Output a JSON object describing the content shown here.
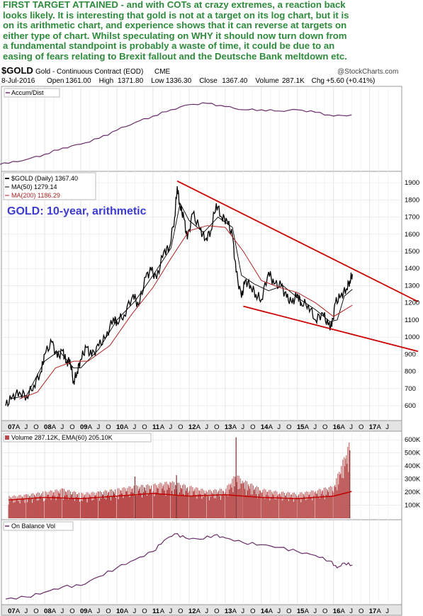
{
  "commentary": {
    "lines": [
      "FIRST TARGET ATTAINED - and with COTs at crazy extremes, a reaction back",
      "looks likely. It is interesting that gold is not at a target on its log chart, but it is",
      "on its arithmetic chart, and experience shows that it can reverse at targets on",
      "either type of chart. Whilst speculating on WHY it should now turn down from",
      "a fundamental standpoint is probably a waste of time, it could be due to an",
      "easing of fears relating to Brexit fallout  and the Deutsche Bank meltdown etc."
    ],
    "color": "#2e8b3c"
  },
  "header": {
    "symbol": "$GOLD",
    "contract": "Gold - Continuous Contract (EOD)",
    "exchange": "CME",
    "source": "@StockCharts.com",
    "date": "8-Jul-2016",
    "quote": [
      {
        "label": "Open",
        "value": "1361.00"
      },
      {
        "label": "High",
        "value": "1371.80"
      },
      {
        "label": "Low",
        "value": "1336.30"
      },
      {
        "label": "Close",
        "value": "1367.40"
      },
      {
        "label": "Volume",
        "value": "287.1K"
      },
      {
        "label": "Chg",
        "value": "+5.60 (+0.41%)"
      }
    ]
  },
  "chart_data": [
    {
      "type": "line",
      "panel": "accum-dist",
      "legend": [
        "Accum/Dist"
      ],
      "series": [
        {
          "name": "Accum/Dist",
          "x": [
            2006.5,
            2007.0,
            2007.5,
            2008.0,
            2008.5,
            2009.0,
            2009.5,
            2010.0,
            2010.5,
            2011.0,
            2011.5,
            2012.0,
            2012.5,
            2013.0,
            2013.5,
            2014.0,
            2014.5,
            2015.0,
            2015.5,
            2016.0,
            2016.5
          ],
          "values": [
            0.05,
            0.06,
            0.12,
            0.2,
            0.3,
            0.36,
            0.45,
            0.58,
            0.7,
            0.8,
            0.9,
            0.98,
            1.0,
            0.95,
            0.9,
            0.9,
            0.88,
            0.9,
            0.86,
            0.8,
            0.82
          ]
        }
      ],
      "color": "#6a2c6a"
    },
    {
      "type": "line",
      "panel": "price",
      "title": "GOLD: 10-year, arithmetic",
      "legend": [
        "$GOLD (Daily) 1367.40",
        "MA(50) 1279.14",
        "MA(200) 1186.29"
      ],
      "x_ticks": [
        "07",
        "A",
        "J",
        "O",
        "08",
        "A",
        "J",
        "O",
        "09",
        "A",
        "J",
        "O",
        "10",
        "A",
        "J",
        "O",
        "11",
        "A",
        "J",
        "O",
        "12",
        "A",
        "J",
        "O",
        "13",
        "A",
        "J",
        "O",
        "14",
        "A",
        "J",
        "O",
        "15",
        "A",
        "J",
        "O",
        "16",
        "A",
        "J",
        "O",
        "17",
        "A",
        "J"
      ],
      "y_ticks": [
        600,
        700,
        800,
        900,
        1000,
        1100,
        1200,
        1300,
        1400,
        1500,
        1600,
        1700,
        1800,
        1900
      ],
      "ylim": [
        530,
        1950
      ],
      "xlim": [
        2006.92,
        2017.75
      ],
      "grid": true,
      "series": [
        {
          "name": "$GOLD (Daily)",
          "x": [
            2006.92,
            2007.1,
            2007.3,
            2007.5,
            2007.7,
            2007.9,
            2008.0,
            2008.2,
            2008.35,
            2008.5,
            2008.6,
            2008.7,
            2008.8,
            2008.9,
            2009.0,
            2009.15,
            2009.3,
            2009.5,
            2009.7,
            2009.9,
            2010.0,
            2010.2,
            2010.45,
            2010.6,
            2010.8,
            2010.95,
            2011.1,
            2011.3,
            2011.45,
            2011.6,
            2011.67,
            2011.75,
            2011.85,
            2011.95,
            2012.1,
            2012.3,
            2012.45,
            2012.6,
            2012.75,
            2012.9,
            2013.05,
            2013.2,
            2013.3,
            2013.45,
            2013.55,
            2013.7,
            2013.85,
            2014.0,
            2014.2,
            2014.35,
            2014.55,
            2014.7,
            2014.85,
            2015.0,
            2015.1,
            2015.3,
            2015.5,
            2015.7,
            2015.85,
            2015.95,
            2016.05,
            2016.2,
            2016.35,
            2016.45,
            2016.52
          ],
          "values": [
            600,
            650,
            680,
            655,
            720,
            800,
            900,
            970,
            880,
            920,
            850,
            870,
            740,
            800,
            870,
            940,
            890,
            950,
            1000,
            1110,
            1090,
            1130,
            1250,
            1180,
            1350,
            1390,
            1340,
            1500,
            1520,
            1700,
            1880,
            1760,
            1700,
            1570,
            1720,
            1630,
            1570,
            1620,
            1780,
            1700,
            1680,
            1590,
            1380,
            1230,
            1330,
            1300,
            1250,
            1220,
            1380,
            1310,
            1300,
            1230,
            1200,
            1250,
            1200,
            1190,
            1100,
            1140,
            1070,
            1060,
            1200,
            1240,
            1280,
            1330,
            1367
          ]
        },
        {
          "name": "MA(50)",
          "x": [
            2007.05,
            2007.5,
            2008.0,
            2008.4,
            2008.8,
            2009.0,
            2009.5,
            2010.0,
            2010.5,
            2011.0,
            2011.5,
            2011.75,
            2012.0,
            2012.4,
            2012.8,
            2013.2,
            2013.45,
            2013.8,
            2014.2,
            2014.6,
            2015.0,
            2015.5,
            2015.9,
            2016.1,
            2016.3,
            2016.52
          ],
          "values": [
            640,
            660,
            860,
            920,
            820,
            820,
            930,
            1100,
            1210,
            1360,
            1520,
            1780,
            1680,
            1610,
            1700,
            1640,
            1360,
            1310,
            1270,
            1300,
            1230,
            1160,
            1090,
            1100,
            1240,
            1279
          ]
        },
        {
          "name": "MA(200)",
          "x": [
            2007.3,
            2007.8,
            2008.3,
            2008.8,
            2009.2,
            2009.8,
            2010.4,
            2011.0,
            2011.5,
            2012.0,
            2012.5,
            2013.0,
            2013.5,
            2014.0,
            2014.5,
            2015.0,
            2015.5,
            2016.0,
            2016.52
          ],
          "values": [
            640,
            680,
            820,
            860,
            860,
            950,
            1130,
            1290,
            1460,
            1620,
            1650,
            1640,
            1500,
            1330,
            1290,
            1260,
            1200,
            1120,
            1186
          ]
        }
      ],
      "trendlines": [
        {
          "name": "resistance",
          "x": [
            2011.67,
            2017.75
          ],
          "values": [
            1910,
            1240
          ]
        },
        {
          "name": "support",
          "x": [
            2013.5,
            2017.75
          ],
          "values": [
            1180,
            950
          ]
        }
      ],
      "colors": {
        "price": "#000000",
        "ma50": "#000000",
        "ma200": "#b22222",
        "trend": "#cc0000",
        "title": "#3b3bd0"
      }
    },
    {
      "type": "bar",
      "panel": "volume",
      "legend": [
        "Volume 287.12K, EMA(60) 205.10K"
      ],
      "y_ticks": [
        "100K",
        "200K",
        "300K",
        "400K",
        "500K",
        "600K"
      ],
      "ylim": [
        0,
        650000
      ],
      "series": [
        {
          "name": "Volume",
          "x": [
            2007.0,
            2007.5,
            2008.0,
            2008.5,
            2009.0,
            2009.5,
            2010.0,
            2010.5,
            2011.0,
            2011.5,
            2012.0,
            2012.5,
            2013.0,
            2013.3,
            2013.5,
            2014.0,
            2014.5,
            2015.0,
            2015.5,
            2016.0,
            2016.45
          ],
          "values": [
            150000,
            160000,
            180000,
            200000,
            170000,
            180000,
            200000,
            220000,
            230000,
            250000,
            220000,
            190000,
            200000,
            300000,
            260000,
            200000,
            180000,
            170000,
            190000,
            220000,
            520000
          ]
        },
        {
          "name": "EMA(60)",
          "x": [
            2007.0,
            2008.0,
            2009.0,
            2010.0,
            2011.0,
            2012.0,
            2013.0,
            2014.0,
            2015.0,
            2016.0,
            2016.5
          ],
          "values": [
            140000,
            160000,
            150000,
            170000,
            190000,
            170000,
            180000,
            160000,
            150000,
            170000,
            205100
          ]
        }
      ],
      "colors": {
        "bars": "#b84a4a",
        "ema": "#c00000"
      }
    },
    {
      "type": "line",
      "panel": "on-balance-vol",
      "legend": [
        "On Balance Vol"
      ],
      "x_ticks": [
        "07",
        "A",
        "J",
        "O",
        "08",
        "A",
        "J",
        "O",
        "09",
        "A",
        "J",
        "O",
        "10",
        "A",
        "J",
        "O",
        "11",
        "A",
        "J",
        "O",
        "12",
        "A",
        "J",
        "O",
        "13",
        "A",
        "J",
        "O",
        "14",
        "A",
        "J",
        "O",
        "15",
        "A",
        "J",
        "O",
        "16",
        "A",
        "J",
        "O",
        "17",
        "A",
        "J"
      ],
      "series": [
        {
          "name": "On Balance Vol",
          "x": [
            2006.92,
            2007.5,
            2008.0,
            2008.5,
            2009.0,
            2009.5,
            2010.0,
            2010.5,
            2011.0,
            2011.3,
            2011.6,
            2011.9,
            2012.3,
            2012.7,
            2013.0,
            2013.5,
            2014.0,
            2014.5,
            2015.0,
            2015.5,
            2015.9,
            2016.1,
            2016.3,
            2016.52
          ],
          "values": [
            0.02,
            0.05,
            0.12,
            0.2,
            0.22,
            0.35,
            0.48,
            0.6,
            0.72,
            0.88,
            0.98,
            0.92,
            0.9,
            0.96,
            0.92,
            0.85,
            0.82,
            0.78,
            0.72,
            0.66,
            0.58,
            0.48,
            0.55,
            0.52
          ]
        }
      ],
      "color": "#6a2c6a"
    }
  ]
}
